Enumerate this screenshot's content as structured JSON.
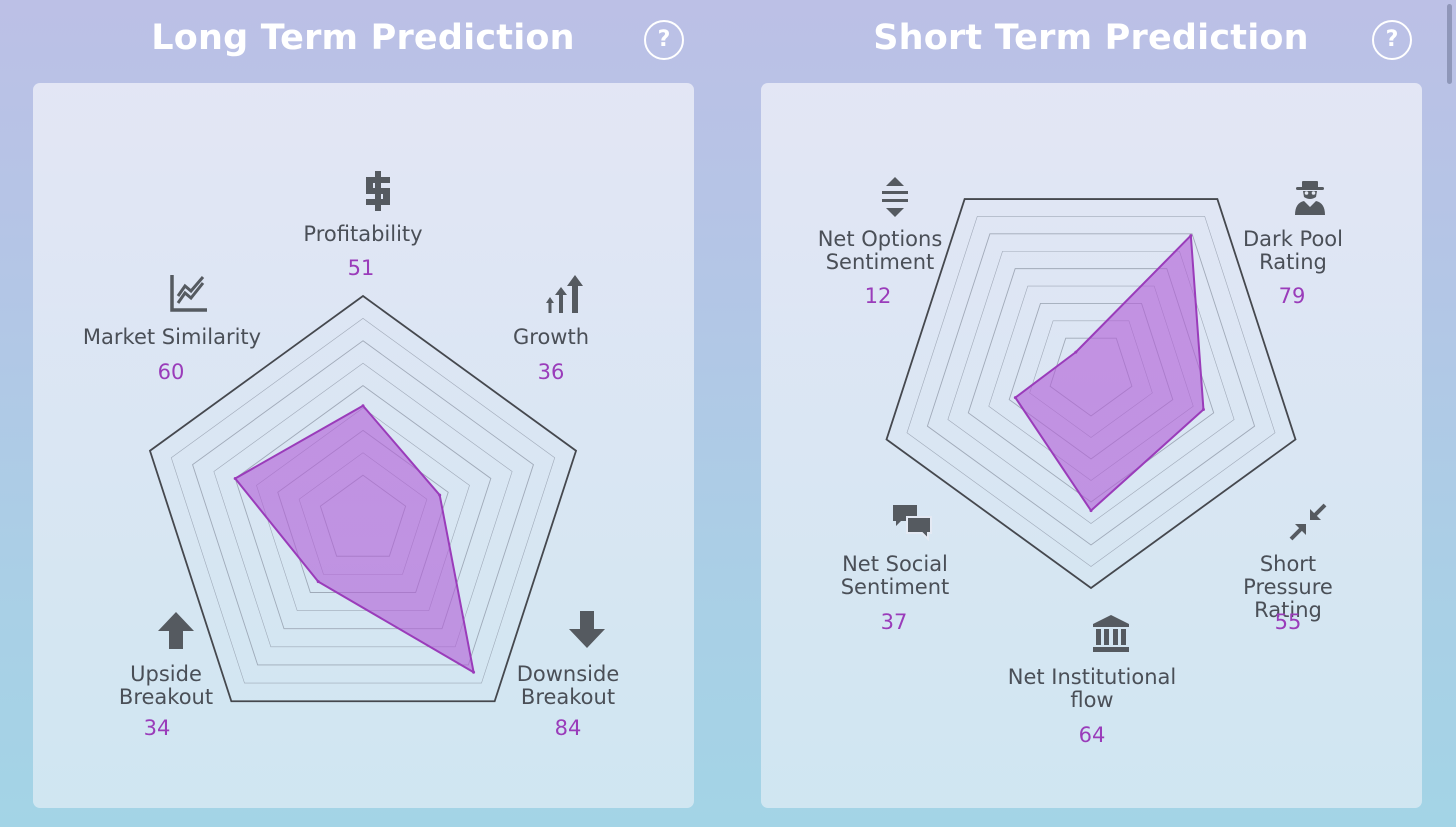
{
  "panels": {
    "left": {
      "title": "Long Term Prediction",
      "help": "?"
    },
    "right": {
      "title": "Short Term Prediction",
      "help": "?"
    }
  },
  "colors": {
    "fill": "#b25fd6",
    "stroke": "#9a3cba",
    "value_text": "#9a3cba",
    "label_text": "#4a4f57",
    "outline": "#45484e",
    "grid": "#8c96a4"
  },
  "chart_data": [
    {
      "type": "radar",
      "title": "Long Term Prediction",
      "scale": [
        0,
        100
      ],
      "axes": [
        {
          "label": "Profitability",
          "value": 51,
          "icon": "dollar-icon"
        },
        {
          "label": "Growth",
          "value": 36,
          "icon": "growth-arrows-icon"
        },
        {
          "label": "Downside\nBreakout",
          "value": 84,
          "icon": "arrow-down-icon"
        },
        {
          "label": "Upside\nBreakout",
          "value": 34,
          "icon": "arrow-up-icon"
        },
        {
          "label": "Market Similarity",
          "value": 60,
          "icon": "line-chart-icon"
        }
      ]
    },
    {
      "type": "radar",
      "title": "Short Term Prediction",
      "scale": [
        0,
        100
      ],
      "axes": [
        {
          "label": "Dark Pool\nRating",
          "value": 79,
          "icon": "spy-icon"
        },
        {
          "label": "Short Pressure\nRating",
          "value": 55,
          "icon": "compress-arrows-icon"
        },
        {
          "label": "Net Institutional\nflow",
          "value": 64,
          "icon": "bank-icon"
        },
        {
          "label": "Net Social\nSentiment",
          "value": 37,
          "icon": "chat-bubbles-icon"
        },
        {
          "label": "Net Options\nSentiment",
          "value": 12,
          "icon": "vertical-arrows-icon"
        }
      ]
    }
  ]
}
